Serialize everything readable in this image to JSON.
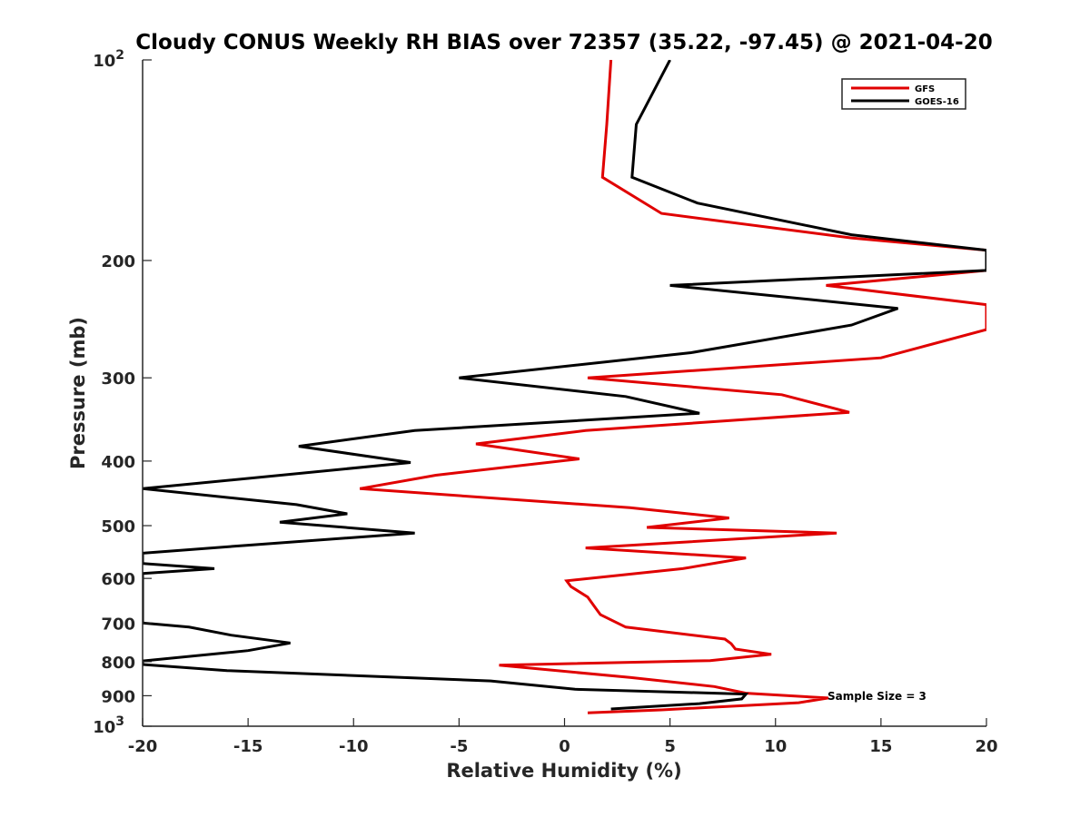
{
  "chart_data": {
    "type": "line",
    "title": "Cloudy CONUS Weekly RH BIAS over 72357 (35.22, -97.45) @ 2021-04-20",
    "xlabel": "Relative Humidity (%)",
    "ylabel": "Pressure (mb)",
    "xlim": [
      -20,
      20
    ],
    "ylim": [
      100,
      1000
    ],
    "yscale": "log",
    "y_reversed": true,
    "x_ticks": [
      "-20",
      "-15",
      "-10",
      "-5",
      "0",
      "5",
      "10",
      "15",
      "20"
    ],
    "x_tick_values": [
      -20,
      -15,
      -10,
      -5,
      0,
      5,
      10,
      15,
      20
    ],
    "y_ticks": [
      {
        "value": 100,
        "base": "10",
        "exp": "2"
      },
      {
        "value": 200,
        "label": "200"
      },
      {
        "value": 300,
        "label": "300"
      },
      {
        "value": 400,
        "label": "400"
      },
      {
        "value": 500,
        "label": "500"
      },
      {
        "value": 600,
        "label": "600"
      },
      {
        "value": 700,
        "label": "700"
      },
      {
        "value": 800,
        "label": "800"
      },
      {
        "value": 900,
        "label": "900"
      },
      {
        "value": 1000,
        "base": "10",
        "exp": "3"
      }
    ],
    "grid": false,
    "legend": {
      "placement": "top-right"
    },
    "annotation": "Sample Size = 3",
    "series": [
      {
        "name": "GFS",
        "color": "#e00000",
        "points": [
          [
            2.2,
            100
          ],
          [
            2.0,
            125
          ],
          [
            1.8,
            150
          ],
          [
            4.6,
            170
          ],
          [
            13.6,
            185
          ],
          [
            20.0,
            193
          ],
          [
            20.0,
            207
          ],
          [
            12.4,
            218
          ],
          [
            20.0,
            233
          ],
          [
            20.0,
            254
          ],
          [
            15.0,
            280
          ],
          [
            1.1,
            300
          ],
          [
            10.3,
            318
          ],
          [
            13.5,
            338
          ],
          [
            1.0,
            360
          ],
          [
            -4.2,
            377
          ],
          [
            0.7,
            397
          ],
          [
            -6.1,
            420
          ],
          [
            -9.7,
            440
          ],
          [
            3.1,
            470
          ],
          [
            7.8,
            487
          ],
          [
            3.9,
            503
          ],
          [
            12.9,
            513
          ],
          [
            1.0,
            540
          ],
          [
            8.6,
            559
          ],
          [
            5.6,
            580
          ],
          [
            0.1,
            605
          ],
          [
            0.3,
            617
          ],
          [
            1.1,
            640
          ],
          [
            1.4,
            660
          ],
          [
            1.7,
            680
          ],
          [
            2.9,
            710
          ],
          [
            7.6,
            740
          ],
          [
            7.9,
            752
          ],
          [
            8.1,
            766
          ],
          [
            9.8,
            780
          ],
          [
            6.9,
            797
          ],
          [
            -3.1,
            810
          ],
          [
            3.1,
            845
          ],
          [
            7.1,
            872
          ],
          [
            8.6,
            892
          ],
          [
            12.5,
            907
          ],
          [
            11.1,
            922
          ],
          [
            4.6,
            945
          ],
          [
            1.1,
            955
          ]
        ]
      },
      {
        "name": "GOES-16",
        "color": "#000000",
        "points": [
          [
            5.0,
            100
          ],
          [
            3.4,
            125
          ],
          [
            3.2,
            150
          ],
          [
            6.3,
            164
          ],
          [
            13.6,
            183
          ],
          [
            20.0,
            193
          ],
          [
            20.0,
            207
          ],
          [
            5.0,
            218
          ],
          [
            15.8,
            236
          ],
          [
            13.6,
            250
          ],
          [
            6.0,
            275
          ],
          [
            -5.0,
            300
          ],
          [
            2.9,
            320
          ],
          [
            6.4,
            339
          ],
          [
            -7.1,
            360
          ],
          [
            -12.6,
            380
          ],
          [
            -7.3,
            402
          ],
          [
            -20.0,
            440
          ],
          [
            -12.7,
            465
          ],
          [
            -10.3,
            480
          ],
          [
            -13.5,
            494
          ],
          [
            -7.1,
            513
          ],
          [
            -15.0,
            535
          ],
          [
            -20.0,
            550
          ],
          [
            -20.0,
            570
          ],
          [
            -16.6,
            580
          ],
          [
            -20.0,
            590
          ],
          [
            -20.0,
            700
          ],
          [
            -17.8,
            710
          ],
          [
            -15.8,
            730
          ],
          [
            -13.0,
            750
          ],
          [
            -15.0,
            770
          ],
          [
            -20.0,
            798
          ],
          [
            -20.0,
            808
          ],
          [
            -16.0,
            825
          ],
          [
            -3.5,
            855
          ],
          [
            0.5,
            880
          ],
          [
            8.6,
            895
          ],
          [
            8.4,
            910
          ],
          [
            6.4,
            925
          ],
          [
            2.2,
            942
          ]
        ]
      }
    ]
  }
}
